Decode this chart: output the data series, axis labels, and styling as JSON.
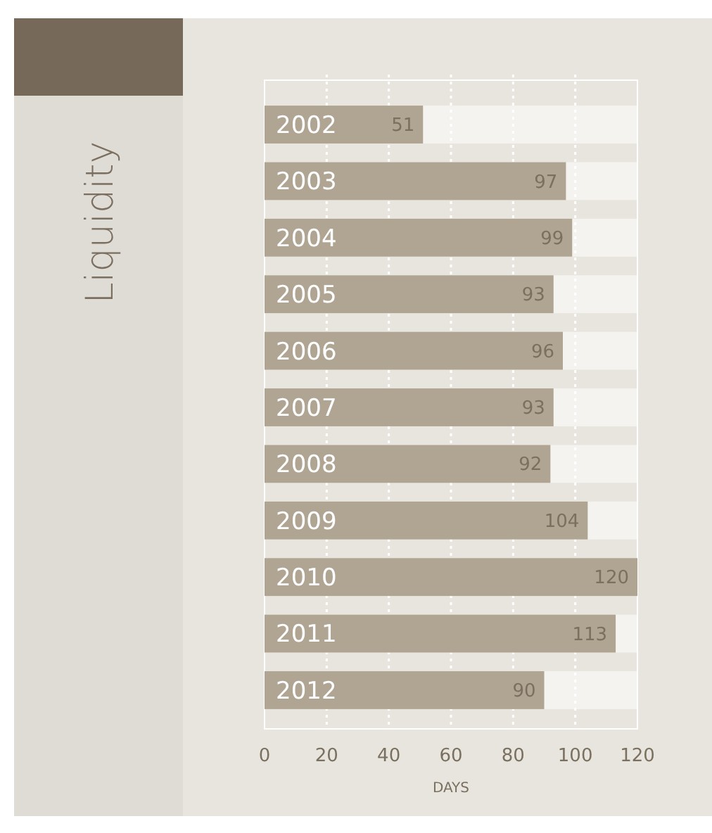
{
  "chart_data": {
    "type": "bar",
    "orientation": "horizontal",
    "title": "Liquidity",
    "xlabel": "DAYS",
    "categories": [
      "2002",
      "2003",
      "2004",
      "2005",
      "2006",
      "2007",
      "2008",
      "2009",
      "2010",
      "2011",
      "2012"
    ],
    "values": [
      51,
      97,
      99,
      93,
      96,
      93,
      92,
      104,
      120,
      113,
      90
    ],
    "color": "#b0a592",
    "xlim": [
      0,
      120
    ],
    "xticks": [
      0,
      20,
      40,
      60,
      80,
      100,
      120
    ],
    "grid": "x",
    "data_labels": true
  }
}
